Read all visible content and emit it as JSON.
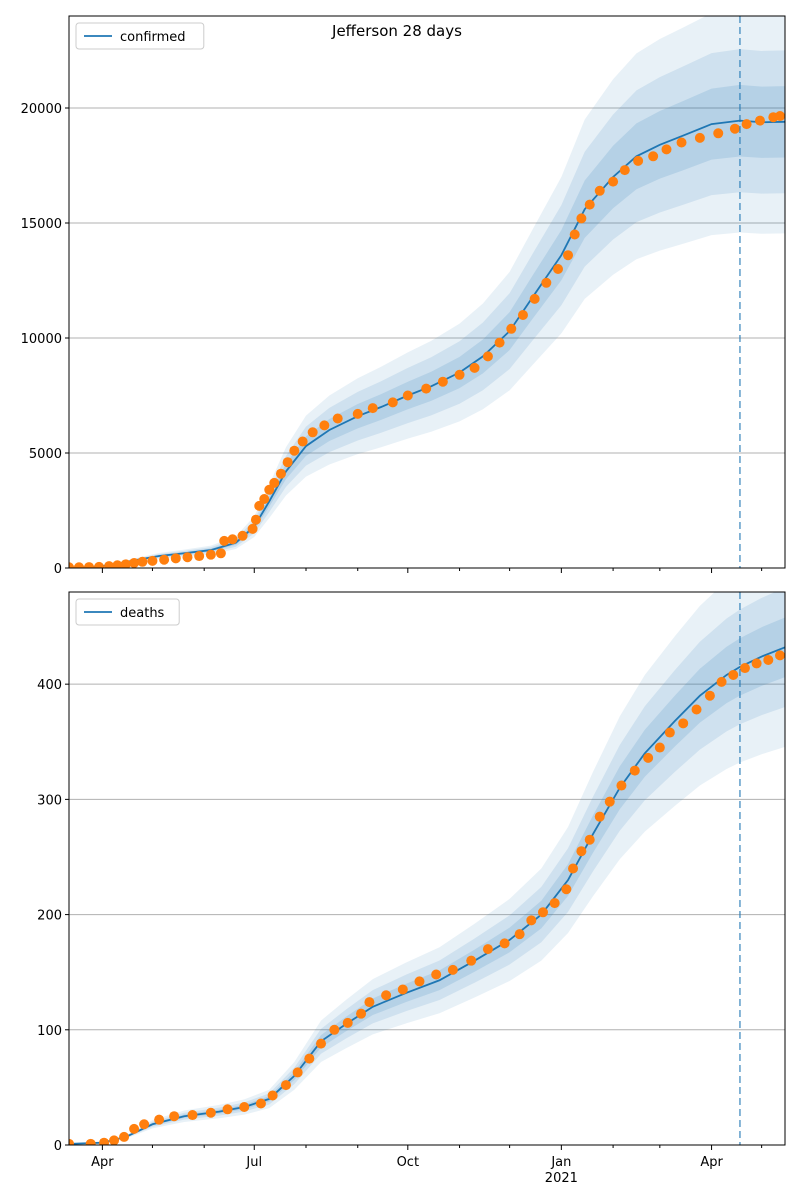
{
  "figure": {
    "title": "Jefferson 28 days"
  },
  "colors": {
    "model": "#1f77b4",
    "observed": "#ff7f0e",
    "band": "#1f77b4",
    "grid": "#b0b0b0"
  },
  "chart_data": [
    {
      "type": "line",
      "legend": "confirmed",
      "legend_position": "upper-left",
      "xlim": [
        "2020-03-12",
        "2021-05-15"
      ],
      "ylim": [
        0,
        24000
      ],
      "yticks": [
        0,
        5000,
        10000,
        15000,
        20000
      ],
      "grid": "horizontal",
      "forecast_start": "2021-04-18",
      "model_mean": [
        [
          "2020-03-12",
          20
        ],
        [
          "2020-03-25",
          40
        ],
        [
          "2020-04-05",
          120
        ],
        [
          "2020-04-20",
          330
        ],
        [
          "2020-05-05",
          520
        ],
        [
          "2020-05-20",
          640
        ],
        [
          "2020-06-05",
          780
        ],
        [
          "2020-06-20",
          1100
        ],
        [
          "2020-07-01",
          1800
        ],
        [
          "2020-07-10",
          2900
        ],
        [
          "2020-07-20",
          4200
        ],
        [
          "2020-08-01",
          5300
        ],
        [
          "2020-08-15",
          6000
        ],
        [
          "2020-09-01",
          6600
        ],
        [
          "2020-09-15",
          7000
        ],
        [
          "2020-10-01",
          7500
        ],
        [
          "2020-10-15",
          7900
        ],
        [
          "2020-11-01",
          8500
        ],
        [
          "2020-11-15",
          9200
        ],
        [
          "2020-12-01",
          10300
        ],
        [
          "2020-12-15",
          11800
        ],
        [
          "2021-01-01",
          13600
        ],
        [
          "2021-01-15",
          15600
        ],
        [
          "2021-02-01",
          17000
        ],
        [
          "2021-02-15",
          17900
        ],
        [
          "2021-03-01",
          18400
        ],
        [
          "2021-03-15",
          18800
        ],
        [
          "2021-04-01",
          19300
        ],
        [
          "2021-04-18",
          19450
        ],
        [
          "2021-05-01",
          19380
        ],
        [
          "2021-05-15",
          19400
        ]
      ],
      "band_widths": [
        0.08,
        0.16,
        0.25
      ],
      "observed": [
        [
          "2020-03-12",
          30
        ],
        [
          "2020-03-18",
          30
        ],
        [
          "2020-03-24",
          40
        ],
        [
          "2020-03-30",
          50
        ],
        [
          "2020-04-05",
          80
        ],
        [
          "2020-04-10",
          120
        ],
        [
          "2020-04-15",
          160
        ],
        [
          "2020-04-20",
          220
        ],
        [
          "2020-04-25",
          270
        ],
        [
          "2020-05-01",
          310
        ],
        [
          "2020-05-08",
          360
        ],
        [
          "2020-05-15",
          420
        ],
        [
          "2020-05-22",
          470
        ],
        [
          "2020-05-29",
          520
        ],
        [
          "2020-06-05",
          580
        ],
        [
          "2020-06-11",
          640
        ],
        [
          "2020-06-13",
          1180
        ],
        [
          "2020-06-18",
          1250
        ],
        [
          "2020-06-24",
          1400
        ],
        [
          "2020-06-30",
          1700
        ],
        [
          "2020-07-02",
          2100
        ],
        [
          "2020-07-04",
          2700
        ],
        [
          "2020-07-07",
          3000
        ],
        [
          "2020-07-10",
          3400
        ],
        [
          "2020-07-13",
          3700
        ],
        [
          "2020-07-17",
          4100
        ],
        [
          "2020-07-21",
          4600
        ],
        [
          "2020-07-25",
          5100
        ],
        [
          "2020-07-30",
          5500
        ],
        [
          "2020-08-05",
          5900
        ],
        [
          "2020-08-12",
          6200
        ],
        [
          "2020-08-20",
          6500
        ],
        [
          "2020-09-01",
          6700
        ],
        [
          "2020-09-10",
          6950
        ],
        [
          "2020-09-22",
          7200
        ],
        [
          "2020-10-01",
          7500
        ],
        [
          "2020-10-12",
          7800
        ],
        [
          "2020-10-22",
          8100
        ],
        [
          "2020-11-01",
          8400
        ],
        [
          "2020-11-10",
          8700
        ],
        [
          "2020-11-18",
          9200
        ],
        [
          "2020-11-25",
          9800
        ],
        [
          "2020-12-02",
          10400
        ],
        [
          "2020-12-09",
          11000
        ],
        [
          "2020-12-16",
          11700
        ],
        [
          "2020-12-23",
          12400
        ],
        [
          "2020-12-30",
          13000
        ],
        [
          "2021-01-05",
          13600
        ],
        [
          "2021-01-09",
          14500
        ],
        [
          "2021-01-13",
          15200
        ],
        [
          "2021-01-18",
          15800
        ],
        [
          "2021-01-24",
          16400
        ],
        [
          "2021-02-01",
          16800
        ],
        [
          "2021-02-08",
          17300
        ],
        [
          "2021-02-16",
          17700
        ],
        [
          "2021-02-25",
          17900
        ],
        [
          "2021-03-05",
          18200
        ],
        [
          "2021-03-14",
          18500
        ],
        [
          "2021-03-25",
          18700
        ],
        [
          "2021-04-05",
          18900
        ],
        [
          "2021-04-15",
          19100
        ],
        [
          "2021-04-22",
          19300
        ],
        [
          "2021-04-30",
          19450
        ],
        [
          "2021-05-08",
          19600
        ],
        [
          "2021-05-12",
          19650
        ]
      ]
    },
    {
      "type": "line",
      "legend": "deaths",
      "legend_position": "upper-left",
      "xlim": [
        "2020-03-12",
        "2021-05-15"
      ],
      "ylim": [
        0,
        480
      ],
      "yticks": [
        0,
        100,
        200,
        300,
        400
      ],
      "grid": "horizontal",
      "forecast_start": "2021-04-18",
      "xticks": [
        [
          "2020-04-01",
          "Apr"
        ],
        [
          "2020-07-01",
          "Jul"
        ],
        [
          "2020-10-01",
          "Oct"
        ],
        [
          "2021-01-01",
          "Jan"
        ],
        [
          "2021-04-01",
          "Apr"
        ]
      ],
      "xtick_sublabel": "2021",
      "model_mean": [
        [
          "2020-03-12",
          1
        ],
        [
          "2020-04-01",
          2
        ],
        [
          "2020-04-15",
          7
        ],
        [
          "2020-05-01",
          18
        ],
        [
          "2020-05-20",
          25
        ],
        [
          "2020-06-10",
          29
        ],
        [
          "2020-06-25",
          33
        ],
        [
          "2020-07-10",
          40
        ],
        [
          "2020-07-25",
          60
        ],
        [
          "2020-08-10",
          90
        ],
        [
          "2020-08-25",
          105
        ],
        [
          "2020-09-10",
          120
        ],
        [
          "2020-09-30",
          132
        ],
        [
          "2020-10-20",
          143
        ],
        [
          "2020-11-10",
          160
        ],
        [
          "2020-12-01",
          178
        ],
        [
          "2020-12-20",
          200
        ],
        [
          "2021-01-05",
          230
        ],
        [
          "2021-01-20",
          270
        ],
        [
          "2021-02-05",
          310
        ],
        [
          "2021-02-20",
          340
        ],
        [
          "2021-03-10",
          368
        ],
        [
          "2021-03-25",
          390
        ],
        [
          "2021-04-10",
          408
        ],
        [
          "2021-04-18",
          415
        ],
        [
          "2021-05-01",
          424
        ],
        [
          "2021-05-15",
          432
        ]
      ],
      "band_widths": [
        0.06,
        0.12,
        0.2
      ],
      "observed": [
        [
          "2020-03-12",
          1
        ],
        [
          "2020-03-25",
          1
        ],
        [
          "2020-04-02",
          2
        ],
        [
          "2020-04-08",
          4
        ],
        [
          "2020-04-14",
          7
        ],
        [
          "2020-04-20",
          14
        ],
        [
          "2020-04-26",
          18
        ],
        [
          "2020-05-05",
          22
        ],
        [
          "2020-05-14",
          25
        ],
        [
          "2020-05-25",
          26
        ],
        [
          "2020-06-05",
          28
        ],
        [
          "2020-06-15",
          31
        ],
        [
          "2020-06-25",
          33
        ],
        [
          "2020-07-05",
          36
        ],
        [
          "2020-07-12",
          43
        ],
        [
          "2020-07-20",
          52
        ],
        [
          "2020-07-27",
          63
        ],
        [
          "2020-08-03",
          75
        ],
        [
          "2020-08-10",
          88
        ],
        [
          "2020-08-18",
          100
        ],
        [
          "2020-08-26",
          106
        ],
        [
          "2020-09-03",
          114
        ],
        [
          "2020-09-08",
          124
        ],
        [
          "2020-09-18",
          130
        ],
        [
          "2020-09-28",
          135
        ],
        [
          "2020-10-08",
          142
        ],
        [
          "2020-10-18",
          148
        ],
        [
          "2020-10-28",
          152
        ],
        [
          "2020-11-08",
          160
        ],
        [
          "2020-11-18",
          170
        ],
        [
          "2020-11-28",
          175
        ],
        [
          "2020-12-07",
          183
        ],
        [
          "2020-12-14",
          195
        ],
        [
          "2020-12-21",
          202
        ],
        [
          "2020-12-28",
          210
        ],
        [
          "2021-01-04",
          222
        ],
        [
          "2021-01-08",
          240
        ],
        [
          "2021-01-13",
          255
        ],
        [
          "2021-01-18",
          265
        ],
        [
          "2021-01-24",
          285
        ],
        [
          "2021-01-30",
          298
        ],
        [
          "2021-02-06",
          312
        ],
        [
          "2021-02-14",
          325
        ],
        [
          "2021-02-22",
          336
        ],
        [
          "2021-03-01",
          345
        ],
        [
          "2021-03-07",
          358
        ],
        [
          "2021-03-15",
          366
        ],
        [
          "2021-03-23",
          378
        ],
        [
          "2021-03-31",
          390
        ],
        [
          "2021-04-07",
          402
        ],
        [
          "2021-04-14",
          408
        ],
        [
          "2021-04-21",
          414
        ],
        [
          "2021-04-28",
          418
        ],
        [
          "2021-05-05",
          421
        ],
        [
          "2021-05-12",
          425
        ]
      ]
    }
  ]
}
